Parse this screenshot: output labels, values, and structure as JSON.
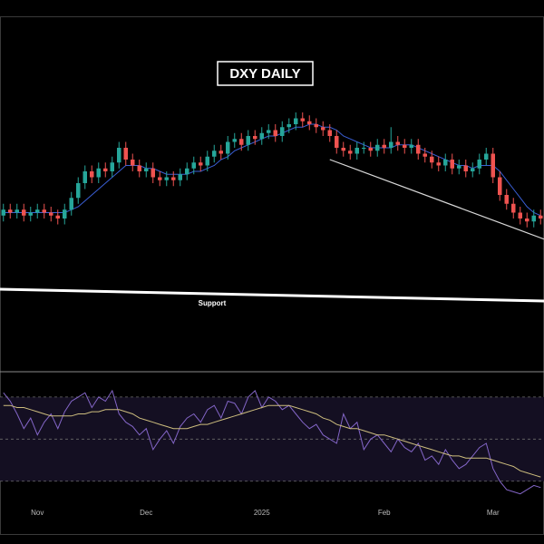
{
  "chart_data": [
    {
      "type": "candlestick",
      "title": "DXY DAILY",
      "xlim": [
        -0.5,
        79.5
      ],
      "ylim": [
        99,
        111
      ],
      "up_color": "#26a69a",
      "down_color": "#ef5350",
      "open": [
        104.3,
        104.5,
        104.4,
        104.5,
        104.3,
        104.4,
        104.5,
        104.4,
        104.3,
        104.2,
        104.5,
        104.9,
        105.4,
        105.8,
        105.6,
        105.9,
        105.8,
        106.1,
        106.6,
        106.2,
        106.0,
        105.8,
        105.9,
        105.6,
        105.5,
        105.6,
        105.5,
        105.7,
        105.9,
        106.1,
        106.0,
        106.3,
        106.5,
        106.4,
        106.8,
        106.9,
        106.7,
        107.0,
        106.9,
        107.1,
        107.2,
        107.0,
        107.3,
        107.4,
        107.6,
        107.5,
        107.4,
        107.3,
        107.2,
        107.0,
        106.6,
        106.5,
        106.4,
        106.6,
        106.6,
        106.5,
        106.7,
        106.6,
        106.8,
        106.7,
        106.6,
        106.7,
        106.4,
        106.3,
        106.1,
        106.0,
        106.2,
        105.9,
        106.0,
        105.8,
        105.9,
        106.2,
        106.4,
        105.6,
        105.0,
        104.7,
        104.4,
        104.2,
        104.1,
        104.3
      ],
      "high": [
        104.7,
        104.7,
        104.7,
        104.7,
        104.6,
        104.7,
        104.7,
        104.6,
        104.5,
        104.7,
        105.1,
        105.6,
        106.0,
        106.0,
        106.1,
        106.1,
        106.3,
        106.8,
        106.8,
        106.4,
        106.2,
        106.1,
        106.1,
        105.8,
        105.8,
        105.8,
        105.9,
        106.1,
        106.3,
        106.3,
        106.5,
        106.7,
        106.7,
        107.0,
        107.1,
        107.1,
        107.2,
        107.2,
        107.3,
        107.4,
        107.4,
        107.5,
        107.6,
        107.8,
        107.8,
        107.7,
        107.6,
        107.5,
        107.4,
        107.2,
        106.8,
        106.7,
        106.8,
        106.8,
        106.8,
        106.9,
        106.9,
        107.3,
        107.0,
        106.9,
        106.9,
        106.9,
        106.6,
        106.5,
        106.3,
        106.4,
        106.4,
        106.2,
        106.2,
        106.1,
        106.4,
        106.6,
        106.6,
        105.8,
        105.2,
        104.9,
        104.6,
        104.4,
        104.5,
        104.5
      ],
      "low": [
        104.1,
        104.2,
        104.2,
        104.1,
        104.1,
        104.2,
        104.2,
        104.1,
        104.0,
        104.0,
        104.3,
        104.7,
        105.2,
        105.4,
        105.4,
        105.6,
        105.6,
        105.9,
        106.0,
        105.8,
        105.6,
        105.6,
        105.4,
        105.3,
        105.3,
        105.3,
        105.3,
        105.5,
        105.7,
        105.8,
        105.8,
        106.1,
        106.2,
        106.2,
        106.6,
        106.5,
        106.5,
        106.7,
        106.7,
        106.9,
        106.8,
        106.8,
        107.1,
        107.2,
        107.3,
        107.2,
        107.1,
        107.0,
        106.8,
        106.4,
        106.3,
        106.2,
        106.2,
        106.4,
        106.3,
        106.3,
        106.4,
        106.4,
        106.5,
        106.4,
        106.4,
        106.2,
        106.1,
        105.9,
        105.8,
        105.8,
        105.7,
        105.7,
        105.6,
        105.6,
        105.7,
        106.0,
        105.4,
        104.8,
        104.5,
        104.2,
        104.0,
        103.9,
        103.9,
        104.0
      ],
      "close": [
        104.5,
        104.4,
        104.5,
        104.3,
        104.4,
        104.5,
        104.4,
        104.3,
        104.2,
        104.5,
        104.9,
        105.4,
        105.8,
        105.6,
        105.9,
        105.8,
        106.1,
        106.6,
        106.2,
        106.0,
        105.8,
        105.9,
        105.6,
        105.5,
        105.6,
        105.5,
        105.7,
        105.9,
        106.1,
        106.0,
        106.3,
        106.5,
        106.4,
        106.8,
        106.9,
        106.7,
        107.0,
        106.9,
        107.1,
        107.2,
        107.0,
        107.3,
        107.4,
        107.6,
        107.5,
        107.4,
        107.3,
        107.2,
        107.0,
        106.6,
        106.5,
        106.4,
        106.6,
        106.6,
        106.5,
        106.7,
        106.6,
        106.8,
        106.7,
        106.6,
        106.7,
        106.4,
        106.3,
        106.1,
        106.0,
        106.2,
        105.9,
        106.0,
        105.8,
        105.9,
        106.2,
        106.4,
        105.6,
        105.0,
        104.7,
        104.4,
        104.2,
        104.1,
        104.3,
        104.2
      ],
      "ma": {
        "color": "#3a5fd6",
        "values": [
          104.4,
          104.4,
          104.4,
          104.4,
          104.4,
          104.4,
          104.4,
          104.4,
          104.4,
          104.4,
          104.5,
          104.6,
          104.8,
          105.0,
          105.2,
          105.4,
          105.6,
          105.8,
          106.0,
          106.0,
          106.0,
          105.9,
          105.9,
          105.8,
          105.7,
          105.7,
          105.7,
          105.7,
          105.8,
          105.8,
          105.9,
          106.0,
          106.2,
          106.3,
          106.5,
          106.6,
          106.7,
          106.8,
          106.9,
          107.0,
          107.0,
          107.1,
          107.2,
          107.3,
          107.3,
          107.4,
          107.4,
          107.3,
          107.3,
          107.2,
          107.0,
          106.9,
          106.8,
          106.7,
          106.6,
          106.6,
          106.6,
          106.6,
          106.7,
          106.7,
          106.7,
          106.6,
          106.5,
          106.4,
          106.3,
          106.2,
          106.1,
          106.0,
          106.0,
          105.9,
          106.0,
          106.0,
          106.0,
          105.8,
          105.5,
          105.2,
          104.9,
          104.6,
          104.4,
          104.3
        ]
      },
      "lines": [
        {
          "label": "Support",
          "color": "#ffffff",
          "x": [
            -0.5,
            79.5
          ],
          "y": [
            101.8,
            101.4
          ]
        },
        {
          "color": "#d8d8d8",
          "x": [
            48,
            79.5
          ],
          "y": [
            106.2,
            103.5
          ]
        }
      ]
    },
    {
      "type": "line",
      "xlim": [
        -0.5,
        79.5
      ],
      "ylim": [
        20,
        82
      ],
      "levels": [
        70,
        50,
        30
      ],
      "xticks": [
        {
          "value": 5,
          "label": "Nov"
        },
        {
          "value": 21,
          "label": "Dec"
        },
        {
          "value": 38,
          "label": "2025"
        },
        {
          "value": 56,
          "label": "Feb"
        },
        {
          "value": 72,
          "label": "Mar"
        }
      ],
      "series": [
        {
          "color": "#8466c8",
          "values": [
            72,
            68,
            62,
            55,
            60,
            52,
            58,
            62,
            55,
            63,
            68,
            70,
            72,
            65,
            70,
            68,
            73,
            62,
            58,
            56,
            52,
            55,
            45,
            50,
            54,
            48,
            56,
            60,
            62,
            58,
            64,
            66,
            60,
            68,
            67,
            62,
            70,
            73,
            65,
            70,
            68,
            64,
            66,
            62,
            58,
            55,
            57,
            52,
            50,
            48,
            62,
            55,
            58,
            45,
            50,
            52,
            48,
            44,
            50,
            46,
            44,
            48,
            40,
            42,
            38,
            45,
            40,
            36,
            38,
            42,
            46,
            48,
            36,
            30,
            26,
            25,
            24,
            26,
            28,
            27
          ]
        },
        {
          "color": "#cdbd7e",
          "values": [
            66,
            66,
            65,
            65,
            64,
            63,
            62,
            61,
            61,
            61,
            61,
            62,
            62,
            63,
            63,
            64,
            64,
            64,
            63,
            62,
            60,
            59,
            58,
            57,
            56,
            55,
            55,
            55,
            56,
            57,
            57,
            58,
            59,
            60,
            61,
            62,
            63,
            64,
            65,
            66,
            66,
            66,
            66,
            65,
            64,
            63,
            62,
            60,
            59,
            57,
            56,
            55,
            55,
            54,
            53,
            52,
            52,
            51,
            50,
            49,
            48,
            47,
            46,
            45,
            44,
            43,
            42,
            42,
            41,
            41,
            41,
            41,
            40,
            39,
            38,
            37,
            35,
            34,
            33,
            32
          ]
        }
      ]
    }
  ]
}
